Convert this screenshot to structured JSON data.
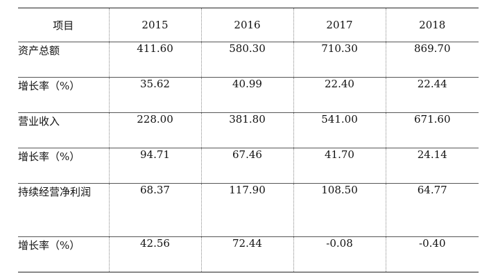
{
  "table": {
    "headers": [
      "项目",
      "2015",
      "2016",
      "2017",
      "2018"
    ],
    "rows": [
      {
        "label": "资产总额",
        "values": [
          "411.60",
          "580.30",
          "710.30",
          "869.70"
        ]
      },
      {
        "label": "增长率（%）",
        "values": [
          "35.62",
          "40.99",
          "22.40",
          "22.44"
        ]
      },
      {
        "label": "营业收入",
        "values": [
          "228.00",
          "381.80",
          "541.00",
          "671.60"
        ]
      },
      {
        "label": "增长率（%）",
        "values": [
          "94.71",
          "67.46",
          "41.70",
          "24.14"
        ]
      },
      {
        "label": "持续经营净利润",
        "values": [
          "68.37",
          "117.90",
          "108.50",
          "64.77"
        ]
      },
      {
        "label": "增长率（%）",
        "values": [
          "42.56",
          "72.44",
          "-0.08",
          "-0.40"
        ]
      }
    ]
  }
}
